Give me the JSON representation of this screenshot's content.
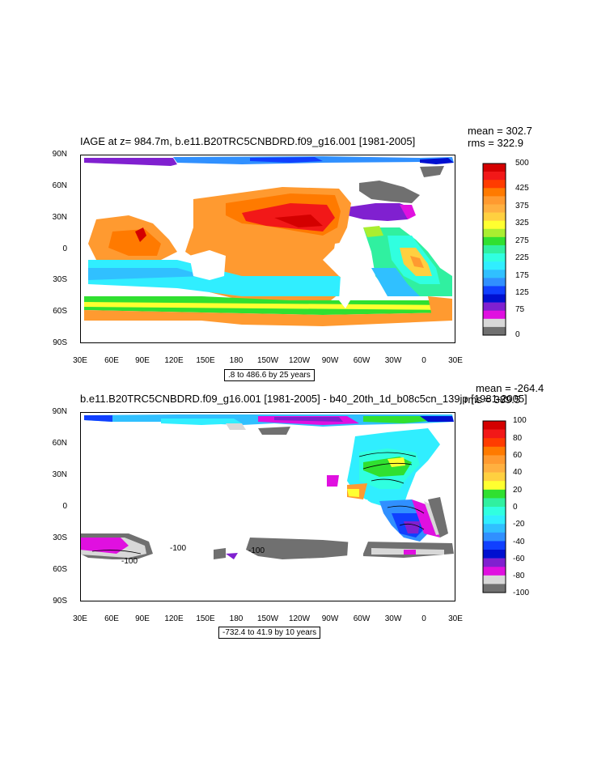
{
  "panel1": {
    "title": "IAGE at z= 984.7m, b.e11.B20TRC5CNBDRD.f09_g16.001 [1981-2005]",
    "mean": "mean = 302.7",
    "rms": "rms = 322.9",
    "info": ".8 to 486.6 by 25 years",
    "colorbar_labels": [
      "500",
      "425",
      "375",
      "325",
      "275",
      "225",
      "175",
      "125",
      "75",
      "0"
    ],
    "colorbar_colors": [
      "#d40000",
      "#f21818",
      "#ff3c00",
      "#ff7a00",
      "#ff9a30",
      "#ffb040",
      "#ffd040",
      "#ffff30",
      "#aaee30",
      "#30e030",
      "#30f0a0",
      "#30ffe0",
      "#30eeff",
      "#30c0ff",
      "#3090ff",
      "#1040ff",
      "#0010d0",
      "#8020d0",
      "#e010e0",
      "#d8d8d8",
      "#707070"
    ]
  },
  "panel2": {
    "title": "b.e11.B20TRC5CNBDRD.f09_g16.001 [1981-2005] - b40_20th_1d_b08c5cn_139jp [1981-2005]",
    "mean": "mean = -264.4",
    "rms": "rms = 389.5",
    "info": "-732.4 to 41.9 by 10 years",
    "colorbar_labels": [
      "100",
      "80",
      "60",
      "40",
      "20",
      "0",
      "-20",
      "-40",
      "-60",
      "-80",
      "-100"
    ],
    "colorbar_colors": [
      "#d40000",
      "#f21818",
      "#ff3c00",
      "#ff7a00",
      "#ff9a30",
      "#ffb040",
      "#ffd040",
      "#ffff30",
      "#30e030",
      "#30f0a0",
      "#30ffe0",
      "#30eeff",
      "#30c0ff",
      "#3090ff",
      "#1040ff",
      "#0010d0",
      "#8020d0",
      "#e010e0",
      "#d8d8d8",
      "#707070"
    ],
    "contour_labels": [
      "-100",
      "-100",
      "-100"
    ]
  },
  "axes": {
    "lat_labels": [
      "90N",
      "60N",
      "30N",
      "0",
      "30S",
      "60S",
      "90S"
    ],
    "lon_labels": [
      "30E",
      "60E",
      "90E",
      "120E",
      "150E",
      "180",
      "150W",
      "120W",
      "90W",
      "60W",
      "30W",
      "0",
      "30E"
    ]
  }
}
